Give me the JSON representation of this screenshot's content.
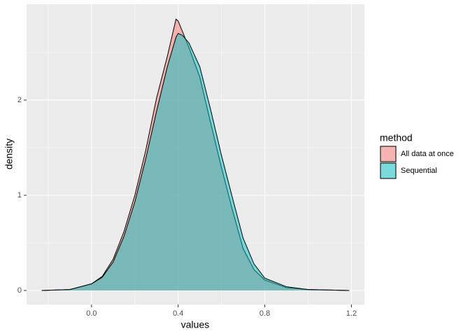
{
  "chart_data": {
    "type": "area",
    "x_label": "values",
    "y_label": "density",
    "legend_title": "method",
    "legend": "right",
    "grid": true,
    "x": [
      -0.23,
      -0.1,
      0,
      0.05,
      0.1,
      0.15,
      0.2,
      0.25,
      0.3,
      0.35,
      0.39,
      0.4,
      0.42,
      0.45,
      0.5,
      0.55,
      0.6,
      0.65,
      0.7,
      0.75,
      0.8,
      0.9,
      1.0,
      1.19
    ],
    "series": [
      {
        "name": "All data at once",
        "color": "#F8766D",
        "values": [
          0,
          0.01,
          0.07,
          0.15,
          0.33,
          0.62,
          1.0,
          1.47,
          2.02,
          2.46,
          2.85,
          2.83,
          2.72,
          2.55,
          2.24,
          1.76,
          1.29,
          0.85,
          0.44,
          0.22,
          0.11,
          0.03,
          0.01,
          0
        ]
      },
      {
        "name": "Sequential",
        "color": "#00BFC4",
        "values": [
          0,
          0.01,
          0.07,
          0.14,
          0.3,
          0.57,
          0.93,
          1.38,
          1.88,
          2.35,
          2.66,
          2.7,
          2.68,
          2.6,
          2.35,
          1.9,
          1.42,
          0.98,
          0.55,
          0.28,
          0.13,
          0.04,
          0.01,
          0
        ]
      }
    ],
    "xlim": [
      -0.3,
      1.26
    ],
    "ylim": [
      -0.147,
      3.007
    ],
    "xticks": [
      {
        "value": 0,
        "label": "0.0"
      },
      0.4,
      0.8,
      1.2
    ],
    "yticks": [
      0,
      1,
      2
    ],
    "x_minor_grid": [
      -0.2,
      0.2,
      0.6,
      1.0
    ],
    "y_minor_grid": [
      0.5,
      1.5,
      2.5
    ]
  }
}
